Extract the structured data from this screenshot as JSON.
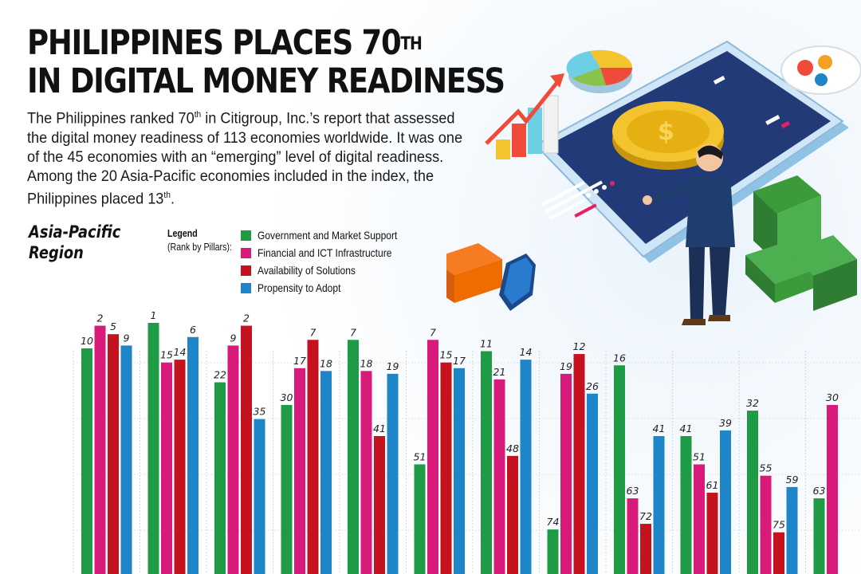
{
  "header": {
    "title_line1": "PHILIPPINES PLACES 70",
    "title_sup": "TH",
    "title_line2": "IN DIGITAL MONEY READINESS"
  },
  "intro": {
    "p1": "The Philippines ranked 70",
    "p1_sup": "th",
    "p2": " in Citigroup, Inc.’s report that assessed the digital money readiness of 113 economies worldwide. It was one of the 45 economies with an “emerging” level of digital readiness. Among the 20 Asia-Pacific economies included in the index, the Philippines placed 13",
    "p2_sup": "th",
    "p3": "."
  },
  "region": {
    "line1": "Asia-Pacific",
    "line2": "Region"
  },
  "legend": {
    "title": "Legend",
    "subtitle": "(Rank by Pillars):",
    "items": [
      {
        "label": "Government and Market Support",
        "color": "#1f9b45"
      },
      {
        "label": "Financial and ICT Infrastructure",
        "color": "#d81b7b"
      },
      {
        "label": "Availability of Solutions",
        "color": "#c4121f"
      },
      {
        "label": "Propensity to Adopt",
        "color": "#1e86c8"
      }
    ]
  },
  "chart_data": {
    "type": "bar",
    "title": "",
    "xlabel": "",
    "ylabel": "",
    "y_is_rank": true,
    "grid": "vertical",
    "series": [
      {
        "name": "Government and Market Support",
        "color": "#1f9b45",
        "values": [
          10,
          1,
          22,
          30,
          7,
          51,
          11,
          74,
          16,
          41,
          32,
          63
        ]
      },
      {
        "name": "Financial and ICT Infrastructure",
        "color": "#d81b7b",
        "values": [
          2,
          15,
          9,
          17,
          18,
          7,
          21,
          19,
          63,
          51,
          55,
          30
        ]
      },
      {
        "name": "Availability of Solutions",
        "color": "#c4121f",
        "values": [
          5,
          14,
          2,
          7,
          41,
          15,
          48,
          12,
          72,
          61,
          75,
          null
        ]
      },
      {
        "name": "Propensity to Adopt",
        "color": "#1e86c8",
        "values": [
          9,
          6,
          35,
          18,
          19,
          17,
          14,
          26,
          41,
          39,
          59,
          null
        ]
      }
    ]
  }
}
